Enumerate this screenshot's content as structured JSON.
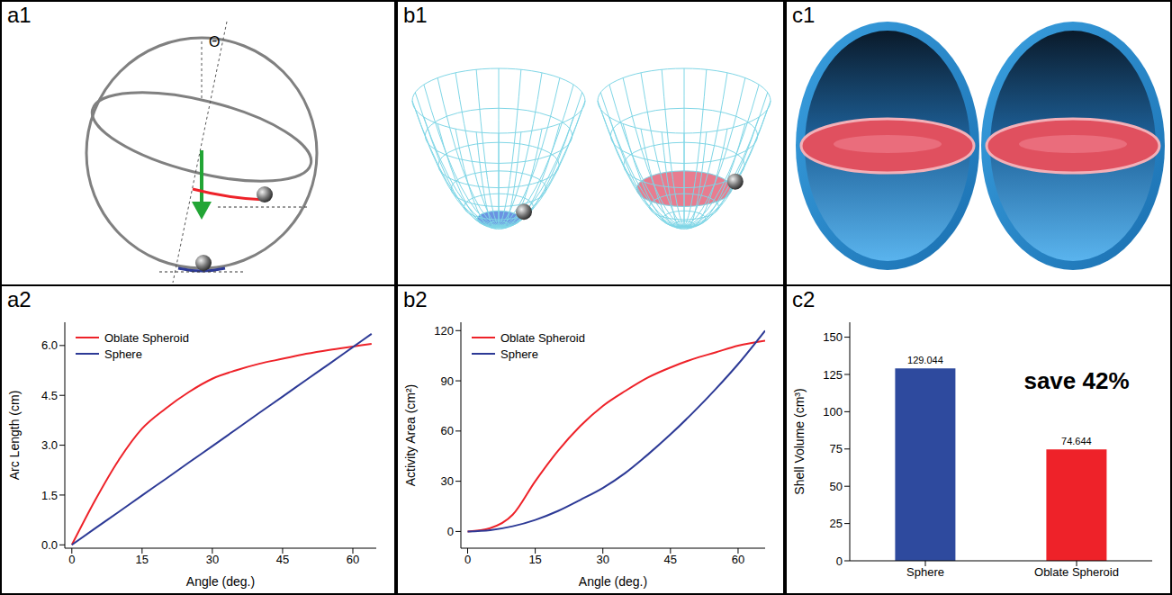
{
  "chart_data": [
    {
      "panel": "a2",
      "type": "line",
      "x_label": "Angle (deg.)",
      "y_label": "Arc Length (cm)",
      "x": [
        0,
        5,
        10,
        15,
        20,
        25,
        30,
        35,
        40,
        45,
        50,
        55,
        60,
        64
      ],
      "series": [
        {
          "name": "Oblate Spheroid",
          "color": "#ee2229",
          "values": [
            0,
            1.35,
            2.55,
            3.5,
            4.1,
            4.6,
            5.0,
            5.25,
            5.45,
            5.6,
            5.75,
            5.87,
            5.97,
            6.05
          ]
        },
        {
          "name": "Sphere",
          "color": "#2d3a96",
          "values": [
            0,
            0.5,
            0.99,
            1.49,
            1.98,
            2.48,
            2.97,
            3.47,
            3.97,
            4.46,
            4.96,
            5.45,
            5.95,
            6.35
          ]
        }
      ],
      "xlim": [
        -1.5,
        65
      ],
      "xticks": [
        0,
        15,
        30,
        45,
        60
      ],
      "ylim": [
        -0.1,
        6.7
      ],
      "yticks": [
        {
          "value": 0,
          "label": "0.0"
        },
        1.5,
        {
          "value": 3,
          "label": "3.0"
        },
        4.5,
        {
          "value": 6,
          "label": "6.0"
        }
      ],
      "legend": "upper left",
      "grid": false
    },
    {
      "panel": "b2",
      "type": "line",
      "x_label": "Angle (deg.)",
      "y_label": "Activity Area (cm²)",
      "x": [
        0,
        5,
        10,
        15,
        20,
        25,
        30,
        35,
        40,
        45,
        50,
        55,
        60,
        66
      ],
      "series": [
        {
          "name": "Oblate Spheroid",
          "color": "#ee2229",
          "values": [
            0,
            2,
            10,
            30,
            48,
            63,
            75,
            84,
            92,
            98,
            103,
            107,
            111,
            114
          ]
        },
        {
          "name": "Sphere",
          "color": "#2d3a96",
          "values": [
            0,
            0.8,
            3.1,
            6.9,
            12.2,
            18.9,
            26,
            35,
            46,
            58,
            71,
            85,
            100,
            120
          ]
        }
      ],
      "xlim": [
        -1.5,
        66
      ],
      "xticks": [
        0,
        15,
        30,
        45,
        60
      ],
      "ylim": [
        -10,
        125
      ],
      "yticks": [
        0,
        30,
        60,
        90,
        120
      ],
      "legend": "upper left",
      "grid": false
    },
    {
      "panel": "c2",
      "type": "bar",
      "y_label": "Shell Volume (cm³)",
      "categories": [
        "Sphere",
        "Oblate Spheroid"
      ],
      "values": [
        129.044,
        74.644
      ],
      "colors": [
        "#2e4a9e",
        "#ee2229"
      ],
      "data_labels": true,
      "annotation": "save 42%",
      "ylim": [
        0,
        160
      ],
      "yticks": [
        0,
        25,
        50,
        75,
        100,
        125,
        150
      ],
      "grid": false
    }
  ],
  "diagrams": [
    {
      "panel": "a1",
      "label": "Θ"
    },
    {
      "panel": "b1"
    },
    {
      "panel": "c1"
    }
  ]
}
